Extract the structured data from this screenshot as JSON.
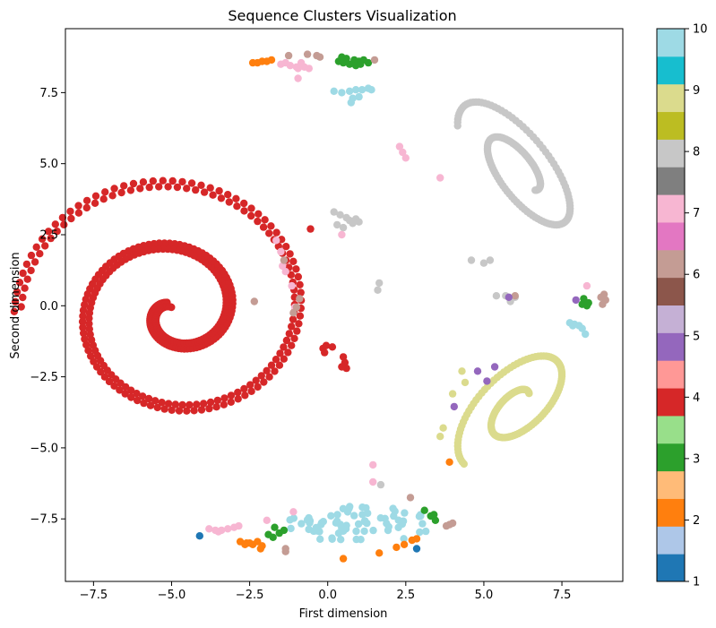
{
  "chart_data": {
    "type": "scatter",
    "title": "Sequence Clusters Visualization",
    "xlabel": "First dimension",
    "ylabel": "Second dimension",
    "xlim": [
      -8.4,
      9.45
    ],
    "ylim": [
      -9.7,
      9.75
    ],
    "xticks": [
      -7.5,
      -5.0,
      -2.5,
      0.0,
      2.5,
      5.0,
      7.5
    ],
    "xtick_labels": [
      "−7.5",
      "−5.0",
      "−2.5",
      "0.0",
      "2.5",
      "5.0",
      "7.5"
    ],
    "yticks": [
      -7.5,
      -5.0,
      -2.5,
      0.0,
      2.5,
      5.0,
      7.5
    ],
    "ytick_labels": [
      "−7.5",
      "−5.0",
      "−2.5",
      "0.0",
      "2.5",
      "5.0",
      "7.5"
    ],
    "grid": false,
    "colorbar": {
      "range": [
        1,
        10
      ],
      "ticks": [
        1,
        2,
        3,
        4,
        5,
        6,
        7,
        8,
        9,
        10
      ],
      "tick_labels": [
        "1",
        "2",
        "3",
        "4",
        "5",
        "6",
        "7",
        "8",
        "9",
        "10"
      ],
      "colormap": "tab20",
      "colors": [
        "#1f77b4",
        "#aec7e8",
        "#ff7f0e",
        "#ffbb78",
        "#2ca02c",
        "#98df8a",
        "#d62728",
        "#ff9896",
        "#9467bd",
        "#c5b0d5",
        "#8c564b",
        "#c49c94",
        "#e377c2",
        "#f7b6d2",
        "#7f7f7f",
        "#c7c7c7",
        "#bcbd22",
        "#dbdb8d",
        "#17becf",
        "#9edae5"
      ]
    },
    "category_colors": {
      "1": "#1f77b4",
      "2": "#ff7f0e",
      "3": "#2ca02c",
      "4": "#d62728",
      "5": "#9467bd",
      "6": "#c49c94",
      "7": "#f7b6d2",
      "8": "#c7c7c7",
      "9": "#dbdb8d",
      "10": "#9edae5"
    },
    "series": [
      {
        "category": 4,
        "shape": "spiral",
        "center": [
          -4.9,
          -0.2
        ],
        "r0": 0.3,
        "r1": 5.3,
        "turns": 2.15,
        "angle0": 2.2,
        "n": 400,
        "width": 2
      },
      {
        "category": 4,
        "points": [
          [
            -0.15,
            -1.5
          ],
          [
            -0.05,
            -1.4
          ],
          [
            0.15,
            -1.45
          ],
          [
            -0.1,
            -1.65
          ],
          [
            0.5,
            -1.8
          ],
          [
            0.55,
            -2.0
          ],
          [
            0.6,
            -2.2
          ],
          [
            0.45,
            -2.15
          ],
          [
            -0.55,
            2.7
          ]
        ]
      },
      {
        "category": 8,
        "shape": "spiral_ellipse",
        "center": [
          6.2,
          4.7
        ],
        "rx": 3.1,
        "ry": 1.25,
        "rot": -55,
        "r0": 0.25,
        "r1": 1.0,
        "turns": 1.6,
        "n": 160
      },
      {
        "category": 8,
        "points": [
          [
            0.2,
            3.3
          ],
          [
            0.4,
            3.2
          ],
          [
            0.6,
            3.1
          ],
          [
            0.8,
            2.9
          ],
          [
            0.9,
            3.05
          ],
          [
            1.0,
            2.95
          ],
          [
            0.3,
            2.85
          ],
          [
            0.5,
            2.75
          ],
          [
            0.7,
            3.0
          ],
          [
            5.2,
            1.6
          ],
          [
            5.0,
            1.5
          ],
          [
            4.6,
            1.6
          ],
          [
            5.4,
            0.35
          ],
          [
            5.7,
            0.35
          ],
          [
            5.85,
            0.15
          ],
          [
            6.0,
            0.3
          ],
          [
            1.65,
            0.8
          ],
          [
            1.6,
            0.55
          ],
          [
            1.7,
            -6.3
          ]
        ]
      },
      {
        "category": 9,
        "shape": "spiral_ellipse",
        "center": [
          6.1,
          -3.5
        ],
        "rx": 2.7,
        "ry": 1.35,
        "rot": 50,
        "r0": 0.2,
        "r1": 1.0,
        "turns": 1.5,
        "n": 150
      },
      {
        "category": 9,
        "points": [
          [
            4.3,
            -2.3
          ],
          [
            4.4,
            -2.7
          ],
          [
            4.0,
            -3.1
          ],
          [
            3.6,
            -4.6
          ],
          [
            3.7,
            -4.3
          ]
        ]
      },
      {
        "category": 10,
        "shape": "blob",
        "center": [
          0.95,
          -7.7
        ],
        "rx": 2.4,
        "ry": 0.65,
        "n": 70
      },
      {
        "category": 10,
        "points": [
          [
            0.2,
            7.55
          ],
          [
            0.45,
            7.5
          ],
          [
            0.7,
            7.55
          ],
          [
            0.9,
            7.6
          ],
          [
            1.1,
            7.6
          ],
          [
            1.3,
            7.65
          ],
          [
            0.8,
            7.3
          ],
          [
            1.0,
            7.35
          ],
          [
            0.75,
            7.15
          ],
          [
            1.4,
            7.6
          ],
          [
            7.9,
            -0.65
          ],
          [
            8.05,
            -0.7
          ],
          [
            8.15,
            -0.8
          ],
          [
            8.25,
            -1.0
          ],
          [
            7.85,
            -0.7
          ],
          [
            7.75,
            -0.6
          ]
        ]
      },
      {
        "category": 3,
        "points": [
          [
            0.35,
            8.6
          ],
          [
            0.5,
            8.55
          ],
          [
            0.7,
            8.5
          ],
          [
            0.85,
            8.65
          ],
          [
            1.0,
            8.6
          ],
          [
            1.15,
            8.65
          ],
          [
            1.3,
            8.55
          ],
          [
            0.6,
            8.7
          ],
          [
            0.45,
            8.75
          ],
          [
            0.9,
            8.45
          ],
          [
            1.05,
            8.5
          ],
          [
            -1.7,
            -7.8
          ],
          [
            -1.55,
            -8.0
          ],
          [
            -1.4,
            -7.9
          ],
          [
            -1.75,
            -8.15
          ],
          [
            -1.9,
            -8.05
          ],
          [
            3.1,
            -7.2
          ],
          [
            3.3,
            -7.4
          ],
          [
            3.45,
            -7.55
          ],
          [
            3.4,
            -7.35
          ],
          [
            8.2,
            0.25
          ],
          [
            8.35,
            0.1
          ],
          [
            8.15,
            0.05
          ],
          [
            8.3,
            0.0
          ]
        ]
      },
      {
        "category": 2,
        "points": [
          [
            -2.4,
            8.55
          ],
          [
            -2.25,
            8.55
          ],
          [
            -2.1,
            8.6
          ],
          [
            -1.95,
            8.6
          ],
          [
            -1.8,
            8.65
          ],
          [
            -2.6,
            -8.35
          ],
          [
            -2.8,
            -8.3
          ],
          [
            -2.4,
            -8.4
          ],
          [
            -2.25,
            -8.3
          ],
          [
            -2.1,
            -8.45
          ],
          [
            -2.15,
            -8.55
          ],
          [
            -2.5,
            -8.35
          ],
          [
            -2.65,
            -8.4
          ],
          [
            0.5,
            -8.9
          ],
          [
            1.65,
            -8.7
          ],
          [
            2.2,
            -8.5
          ],
          [
            2.45,
            -8.4
          ],
          [
            2.7,
            -8.25
          ],
          [
            2.85,
            -8.2
          ],
          [
            3.9,
            -5.5
          ]
        ]
      },
      {
        "category": 1,
        "points": [
          [
            -4.1,
            -8.1
          ],
          [
            2.85,
            -8.55
          ]
        ]
      },
      {
        "category": 7,
        "points": [
          [
            -1.5,
            8.5
          ],
          [
            -1.35,
            8.55
          ],
          [
            -1.2,
            8.45
          ],
          [
            -0.95,
            8.35
          ],
          [
            -0.75,
            8.4
          ],
          [
            -0.6,
            8.35
          ],
          [
            -0.85,
            8.55
          ],
          [
            -0.95,
            8.0
          ],
          [
            -1.0,
            8.4
          ],
          [
            -3.8,
            -7.85
          ],
          [
            -3.6,
            -7.9
          ],
          [
            -3.4,
            -7.9
          ],
          [
            -3.2,
            -7.85
          ],
          [
            -3.0,
            -7.8
          ],
          [
            -2.85,
            -7.75
          ],
          [
            -3.5,
            -7.95
          ],
          [
            -1.1,
            -7.25
          ],
          [
            -1.95,
            -7.55
          ],
          [
            -1.65,
            2.3
          ],
          [
            -1.5,
            1.9
          ],
          [
            -1.45,
            1.4
          ],
          [
            -1.35,
            1.2
          ],
          [
            -1.15,
            0.7
          ],
          [
            -1.05,
            -0.05
          ],
          [
            2.3,
            5.6
          ],
          [
            2.4,
            5.4
          ],
          [
            2.5,
            5.2
          ],
          [
            3.6,
            4.5
          ],
          [
            1.45,
            -6.2
          ],
          [
            1.45,
            -5.6
          ],
          [
            8.3,
            0.7
          ],
          [
            0.45,
            2.5
          ]
        ]
      },
      {
        "category": 6,
        "points": [
          [
            -1.25,
            8.8
          ],
          [
            -0.65,
            8.85
          ],
          [
            -0.35,
            8.8
          ],
          [
            -0.25,
            8.75
          ],
          [
            1.5,
            8.65
          ],
          [
            -2.35,
            0.15
          ],
          [
            -1.4,
            1.6
          ],
          [
            -0.9,
            0.25
          ],
          [
            -1.0,
            -0.05
          ],
          [
            -1.1,
            -0.25
          ],
          [
            -1.35,
            -8.55
          ],
          [
            -1.35,
            -8.65
          ],
          [
            2.65,
            -6.75
          ],
          [
            3.9,
            -7.7
          ],
          [
            4.0,
            -7.65
          ],
          [
            3.8,
            -7.75
          ],
          [
            8.85,
            0.4
          ],
          [
            8.9,
            0.2
          ],
          [
            8.8,
            0.05
          ],
          [
            8.75,
            0.3
          ],
          [
            6.0,
            0.35
          ]
        ]
      },
      {
        "category": 5,
        "points": [
          [
            4.8,
            -2.3
          ],
          [
            5.1,
            -2.65
          ],
          [
            5.35,
            -2.15
          ],
          [
            5.8,
            0.3
          ],
          [
            7.95,
            0.2
          ],
          [
            4.05,
            -3.55
          ]
        ]
      }
    ]
  }
}
